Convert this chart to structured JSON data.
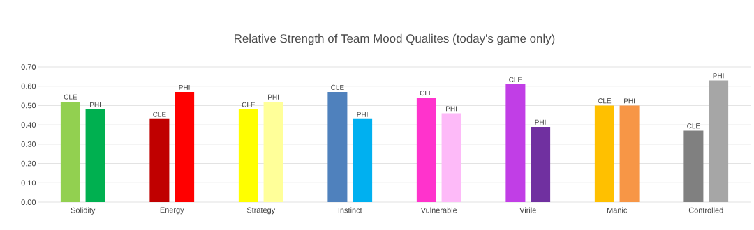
{
  "chart_data": {
    "type": "bar",
    "title": "Relative Strength of Team Mood Qualites (today's game only)",
    "categories": [
      "Solidity",
      "Energy",
      "Strategy",
      "Instinct",
      "Vulnerable",
      "Virile",
      "Manic",
      "Controlled"
    ],
    "series": [
      {
        "name": "CLE",
        "colors": [
          "#92d050",
          "#c00000",
          "#ffff00",
          "#4f81bd",
          "#ff33cc",
          "#c13ee6",
          "#ffc000",
          "#808080"
        ],
        "values": [
          0.52,
          0.43,
          0.48,
          0.57,
          0.54,
          0.61,
          0.5,
          0.37
        ]
      },
      {
        "name": "PHI",
        "colors": [
          "#00b050",
          "#ff0000",
          "#ffff99",
          "#00b0f0",
          "#fdbaf8",
          "#7030a0",
          "#f79646",
          "#a6a6a6"
        ],
        "values": [
          0.48,
          0.57,
          0.52,
          0.43,
          0.46,
          0.39,
          0.5,
          0.63
        ]
      }
    ],
    "ylim": [
      0,
      0.7
    ],
    "yticks": [
      {
        "value": 0,
        "label": "0.00"
      },
      {
        "value": 0.1,
        "label": "0.10"
      },
      {
        "value": 0.2,
        "label": "0.20"
      },
      {
        "value": 0.3,
        "label": "0.30"
      },
      {
        "value": 0.4,
        "label": "0.40"
      },
      {
        "value": 0.5,
        "label": "0.50"
      },
      {
        "value": 0.6,
        "label": "0.60"
      },
      {
        "value": 0.7,
        "label": "0.70"
      }
    ],
    "grid": "y"
  }
}
